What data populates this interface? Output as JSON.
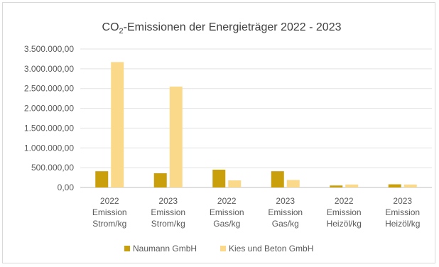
{
  "chart_data": {
    "type": "bar",
    "title": "CO₂-Emissionen der Energieträger 2022 - 2023",
    "title_main": "CO",
    "title_sub": "2",
    "title_rest": "-Emissionen der Energieträger 2022 - 2023",
    "categories": [
      [
        "2022",
        "Emission",
        "Strom/kg"
      ],
      [
        "2023",
        "Emission",
        "Strom/kg"
      ],
      [
        "2022",
        "Emission",
        "Gas/kg"
      ],
      [
        "2023",
        "Emission",
        "Gas/kg"
      ],
      [
        "2022",
        "Emission",
        "Heizöl/kg"
      ],
      [
        "2023",
        "Emission",
        "Heizöl/kg"
      ]
    ],
    "series": [
      {
        "name": "Naumann GmbH",
        "color": "#c9a00c",
        "values": [
          410000,
          360000,
          450000,
          410000,
          50000,
          80000
        ]
      },
      {
        "name": "Kies und Beton GmbH",
        "color": "#fbd98a",
        "values": [
          3170000,
          2550000,
          180000,
          190000,
          75000,
          75000
        ]
      }
    ],
    "ylim": [
      0,
      3500000
    ],
    "yticks": [
      "0,00",
      "500.000,00",
      "1.000.000,00",
      "1.500.000,00",
      "2.000.000,00",
      "2.500.000,00",
      "3.000.000,00",
      "3.500.000,00"
    ],
    "grid": true,
    "legend_position": "bottom"
  }
}
